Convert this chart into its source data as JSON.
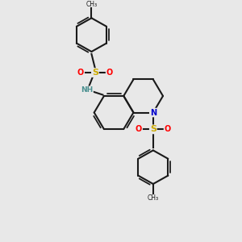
{
  "background_color": "#e8e8e8",
  "bond_color": "#1a1a1a",
  "bond_width": 1.5,
  "S_color": "#ccaa00",
  "O_color": "#ff0000",
  "N_color": "#0000cc",
  "NH_color": "#4a9090",
  "figsize": [
    3.0,
    3.0
  ],
  "dpi": 100,
  "xlim": [
    0,
    10
  ],
  "ylim": [
    0,
    10
  ]
}
